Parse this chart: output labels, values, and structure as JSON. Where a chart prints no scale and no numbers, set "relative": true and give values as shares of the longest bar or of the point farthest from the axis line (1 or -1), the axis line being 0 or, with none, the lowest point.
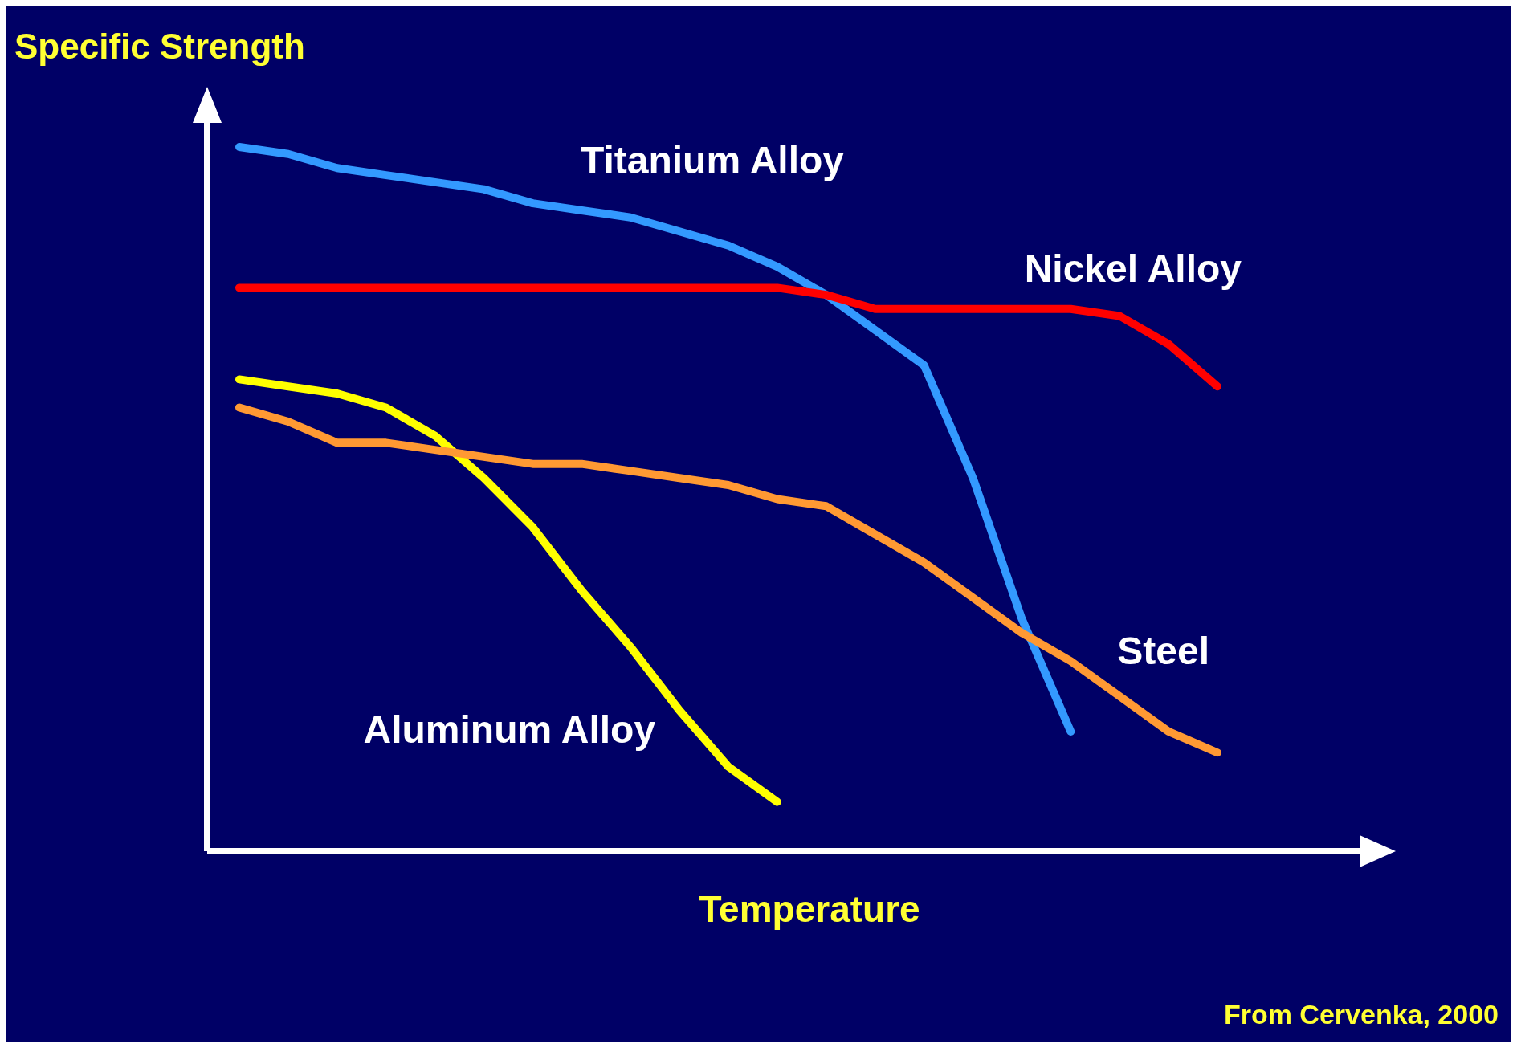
{
  "chart_data": {
    "type": "line",
    "relative": true,
    "ylabel": "Specific Strength",
    "xlabel": "Temperature",
    "annotations": [
      "From Cervenka, 2000"
    ],
    "categories": [
      null,
      null,
      null,
      null,
      null,
      null,
      null,
      null,
      null,
      null,
      null,
      null,
      null,
      null,
      null,
      null,
      null,
      null,
      null,
      null,
      null
    ],
    "series": [
      {
        "name": "Titanium Alloy",
        "color": "#3399ff",
        "values": [
          1.0,
          0.99,
          0.97,
          0.96,
          0.95,
          0.94,
          0.92,
          0.91,
          0.9,
          0.88,
          0.86,
          0.83,
          0.79,
          0.74,
          0.69,
          0.53,
          0.33,
          0.17,
          null,
          null,
          null
        ]
      },
      {
        "name": "Nickel Alloy",
        "color": "#ff0000",
        "values": [
          0.8,
          0.8,
          0.8,
          0.8,
          0.8,
          0.8,
          0.8,
          0.8,
          0.8,
          0.8,
          0.8,
          0.8,
          0.79,
          0.77,
          0.77,
          0.77,
          0.77,
          0.77,
          0.76,
          0.72,
          0.66
        ]
      },
      {
        "name": "Aluminum Alloy",
        "color": "#ffff00",
        "values": [
          0.67,
          0.66,
          0.65,
          0.63,
          0.59,
          0.53,
          0.46,
          0.37,
          0.29,
          0.2,
          0.12,
          0.07,
          null,
          null,
          null,
          null,
          null,
          null,
          null,
          null,
          null
        ]
      },
      {
        "name": "Steel",
        "color": "#ff9933",
        "values": [
          0.63,
          0.61,
          0.58,
          0.58,
          0.57,
          0.56,
          0.55,
          0.55,
          0.54,
          0.53,
          0.52,
          0.5,
          0.49,
          0.45,
          0.41,
          0.36,
          0.31,
          0.27,
          0.22,
          0.17,
          0.14
        ]
      }
    ]
  }
}
